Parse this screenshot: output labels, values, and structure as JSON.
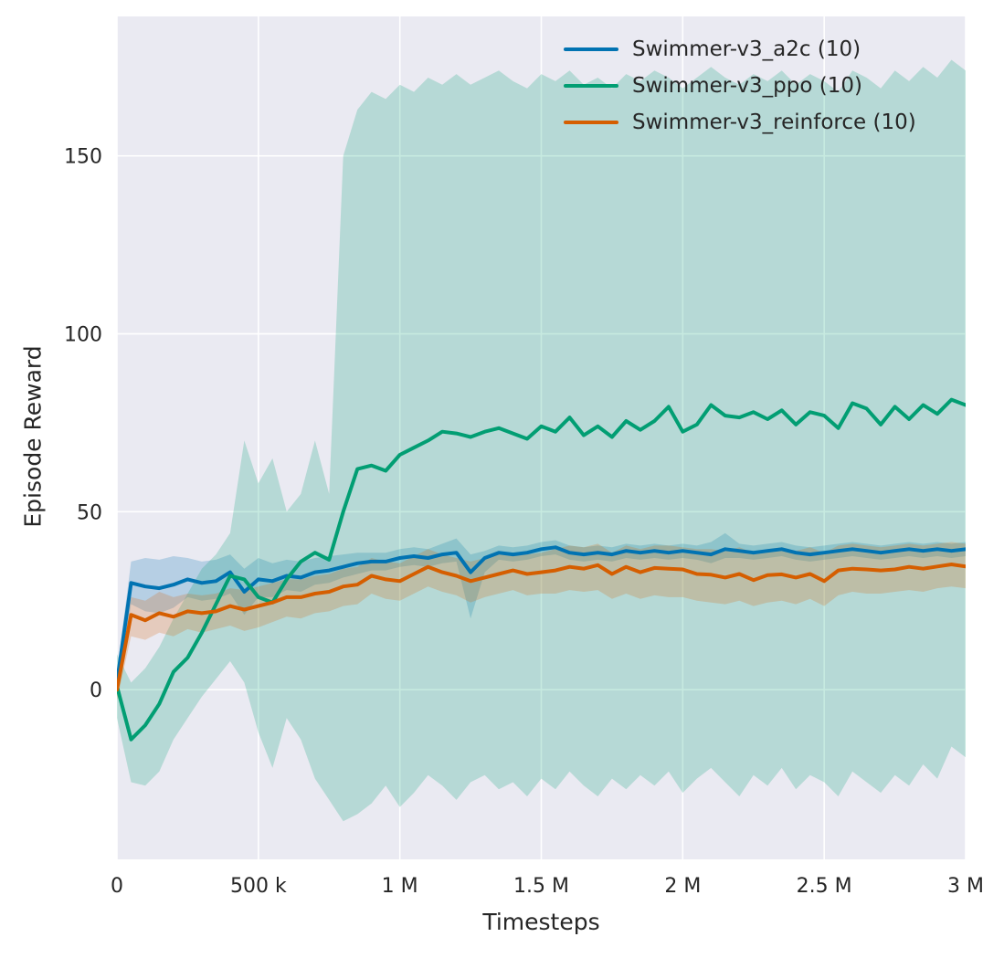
{
  "chart_data": {
    "type": "line",
    "title": "",
    "xlabel": "Timesteps",
    "ylabel": "Episode Reward",
    "xlim": [
      0,
      3000000
    ],
    "ylim": [
      -47.7,
      189.2
    ],
    "grid": true,
    "legend_position": "upper right",
    "axes_background_color": "#eaeaf2",
    "grid_color": "#ffffff",
    "text_color": "#262626",
    "band_opacity": 0.22,
    "x_ticks": [
      {
        "value": 0,
        "label": "0"
      },
      {
        "value": 500000,
        "label": "500 k"
      },
      {
        "value": 1000000,
        "label": "1 M"
      },
      {
        "value": 1500000,
        "label": "1.5 M"
      },
      {
        "value": 2000000,
        "label": "2 M"
      },
      {
        "value": 2500000,
        "label": "2.5 M"
      },
      {
        "value": 3000000,
        "label": "3 M"
      }
    ],
    "y_ticks": [
      {
        "value": 0,
        "label": "0"
      },
      {
        "value": 50,
        "label": "50"
      },
      {
        "value": 100,
        "label": "100"
      },
      {
        "value": 150,
        "label": "150"
      }
    ],
    "x": [
      0,
      50000,
      100000,
      150000,
      200000,
      250000,
      300000,
      350000,
      400000,
      450000,
      500000,
      550000,
      600000,
      650000,
      700000,
      750000,
      800000,
      850000,
      900000,
      950000,
      1000000,
      1050000,
      1100000,
      1150000,
      1200000,
      1250000,
      1300000,
      1350000,
      1400000,
      1450000,
      1500000,
      1550000,
      1600000,
      1650000,
      1700000,
      1750000,
      1800000,
      1850000,
      1900000,
      1950000,
      2000000,
      2050000,
      2100000,
      2150000,
      2200000,
      2250000,
      2300000,
      2350000,
      2400000,
      2450000,
      2500000,
      2550000,
      2600000,
      2650000,
      2700000,
      2750000,
      2800000,
      2850000,
      2900000,
      2950000,
      3000000
    ],
    "series": [
      {
        "name": "Swimmer-v3_a2c (10)",
        "color": "#0173b2",
        "values": [
          2,
          30,
          29,
          28.5,
          29.5,
          31,
          30,
          30.5,
          33,
          27.5,
          31,
          30.5,
          32,
          31.5,
          33,
          33.5,
          34.5,
          35.5,
          36,
          36,
          37,
          37.5,
          37,
          38,
          38.5,
          33,
          37,
          38.5,
          38,
          38.5,
          39.5,
          40,
          38.5,
          38,
          38.5,
          38,
          39,
          38.5,
          39,
          38.5,
          39,
          38.5,
          38,
          39.5,
          39,
          38.5,
          39,
          39.5,
          38.5,
          38,
          38.5,
          39,
          39.5,
          39,
          38.5,
          39,
          39.5,
          39,
          39.5,
          39,
          39.5
        ],
        "band_lower": [
          -1,
          24,
          22,
          21.5,
          23,
          26,
          25,
          25.5,
          27,
          21,
          26,
          26,
          28,
          27.5,
          29.5,
          30,
          31.5,
          32.5,
          33.5,
          33.5,
          34.5,
          35,
          34.5,
          35.5,
          36,
          20,
          33,
          36.5,
          36,
          36.5,
          37.5,
          38,
          36.5,
          36,
          36.5,
          36,
          37,
          36.5,
          37,
          36.5,
          37,
          36.5,
          35.5,
          37,
          37,
          36.5,
          37,
          37.5,
          36.5,
          36,
          36.5,
          37,
          37.5,
          37,
          36.5,
          37,
          37.5,
          37,
          37.5,
          37,
          37.5
        ],
        "band_upper": [
          5,
          36,
          37,
          36.5,
          37.5,
          37,
          36,
          36.5,
          38,
          34,
          37,
          35.5,
          36.5,
          36,
          37,
          37.5,
          38,
          38.5,
          38.5,
          38.5,
          39.5,
          40,
          39.5,
          41,
          42.5,
          38,
          39,
          40.5,
          40,
          40.5,
          41.5,
          42,
          40.5,
          40,
          40.5,
          40,
          41,
          40.5,
          41,
          40.5,
          41,
          40.5,
          41.5,
          44,
          41,
          40.5,
          41,
          41.5,
          40.5,
          40,
          40.5,
          41,
          41.5,
          41,
          40.5,
          41,
          41.5,
          41,
          41.5,
          41,
          41.5
        ]
      },
      {
        "name": "Swimmer-v3_ppo (10)",
        "color": "#029e73",
        "values": [
          1,
          -14,
          -10,
          -4,
          5,
          9,
          16,
          24,
          32,
          31,
          26,
          24.5,
          31,
          36,
          38.5,
          36.5,
          50,
          62,
          63,
          61.5,
          66,
          68,
          70,
          72.5,
          72,
          71,
          72.5,
          73.5,
          72,
          70.5,
          74,
          72.5,
          76.5,
          71.5,
          74,
          71,
          75.5,
          73,
          75.5,
          79.5,
          72.5,
          74.5,
          80,
          77,
          76.5,
          78,
          76,
          78.5,
          74.5,
          78,
          77,
          73.5,
          80.5,
          79,
          74.5,
          79.5,
          76,
          80,
          77.5,
          81.5,
          80
        ],
        "band_lower": [
          -8,
          -26,
          -27,
          -23,
          -14,
          -8,
          -2,
          3,
          8,
          2,
          -12,
          -22,
          -8,
          -14,
          -25,
          -31,
          -37,
          -35,
          -32,
          -27,
          -33,
          -29,
          -24,
          -27,
          -31,
          -26,
          -24,
          -28,
          -26,
          -30,
          -25,
          -28,
          -23,
          -27,
          -30,
          -25,
          -28,
          -24,
          -27,
          -23,
          -29,
          -25,
          -22,
          -26,
          -30,
          -24,
          -27,
          -22,
          -28,
          -24,
          -26,
          -30,
          -23,
          -26,
          -29,
          -24,
          -27,
          -21,
          -25,
          -16,
          -19
        ],
        "band_upper": [
          10,
          2,
          6,
          12,
          20,
          27,
          34,
          38,
          44,
          70,
          58,
          65,
          50,
          55,
          70,
          55,
          150,
          163,
          168,
          166,
          170,
          168,
          172,
          170,
          173,
          170,
          172,
          174,
          171,
          169,
          173,
          171,
          174,
          170,
          172,
          169,
          173,
          171,
          174,
          172,
          169,
          172,
          175,
          172,
          170,
          173,
          171,
          174,
          170,
          173,
          171,
          168,
          174,
          172,
          169,
          174,
          171,
          175,
          172,
          177,
          174
        ]
      },
      {
        "name": "Swimmer-v3_reinforce (10)",
        "color": "#d55e00",
        "values": [
          0,
          21,
          19.5,
          21.5,
          20.5,
          22,
          21.5,
          22,
          23.5,
          22.5,
          23.5,
          24.5,
          26,
          26,
          27,
          27.5,
          29,
          29.5,
          32,
          31,
          30.5,
          32.5,
          34.5,
          33,
          32,
          30.5,
          31.5,
          32.5,
          33.5,
          32.5,
          33,
          33.5,
          34.5,
          34,
          35,
          32.5,
          34.5,
          33,
          34.2,
          34,
          33.8,
          32.5,
          32.3,
          31.5,
          32.5,
          30.8,
          32.2,
          32.4,
          31.5,
          32.5,
          30.5,
          33.5,
          34,
          33.8,
          33.5,
          33.8,
          34.5,
          34,
          34.6,
          35.2,
          34.6
        ],
        "band_lower": [
          -3,
          15,
          14,
          16,
          15,
          17,
          16,
          17,
          18,
          16.5,
          17.5,
          19,
          20.5,
          20,
          21.5,
          22,
          23.5,
          24,
          27,
          25.5,
          25,
          27,
          29,
          27.5,
          26.5,
          24.5,
          26,
          27,
          28,
          26.5,
          27,
          27,
          28,
          27.5,
          28,
          25.5,
          27,
          25.5,
          26.5,
          26,
          26,
          25,
          24.5,
          24,
          25,
          23.5,
          24.5,
          25,
          24,
          25.5,
          23.5,
          26.5,
          27.5,
          27,
          27,
          27.5,
          28,
          27.5,
          28.5,
          29,
          28.5
        ],
        "band_upper": [
          3,
          26,
          25,
          27.5,
          26,
          27,
          26.5,
          27,
          28.5,
          28,
          29,
          30,
          31,
          31,
          32,
          32.5,
          34,
          34.5,
          37,
          36,
          35.5,
          37.5,
          39.5,
          38,
          37,
          36,
          37,
          38,
          38.5,
          38,
          38.5,
          39.5,
          40.5,
          40,
          41,
          38.5,
          40.5,
          39.5,
          40.5,
          40.5,
          40,
          39.5,
          39.5,
          39,
          40,
          38.5,
          39.5,
          40,
          39,
          40,
          38.5,
          40.5,
          41,
          40.5,
          40,
          40.5,
          41,
          40.5,
          41,
          41.5,
          41
        ]
      }
    ]
  }
}
